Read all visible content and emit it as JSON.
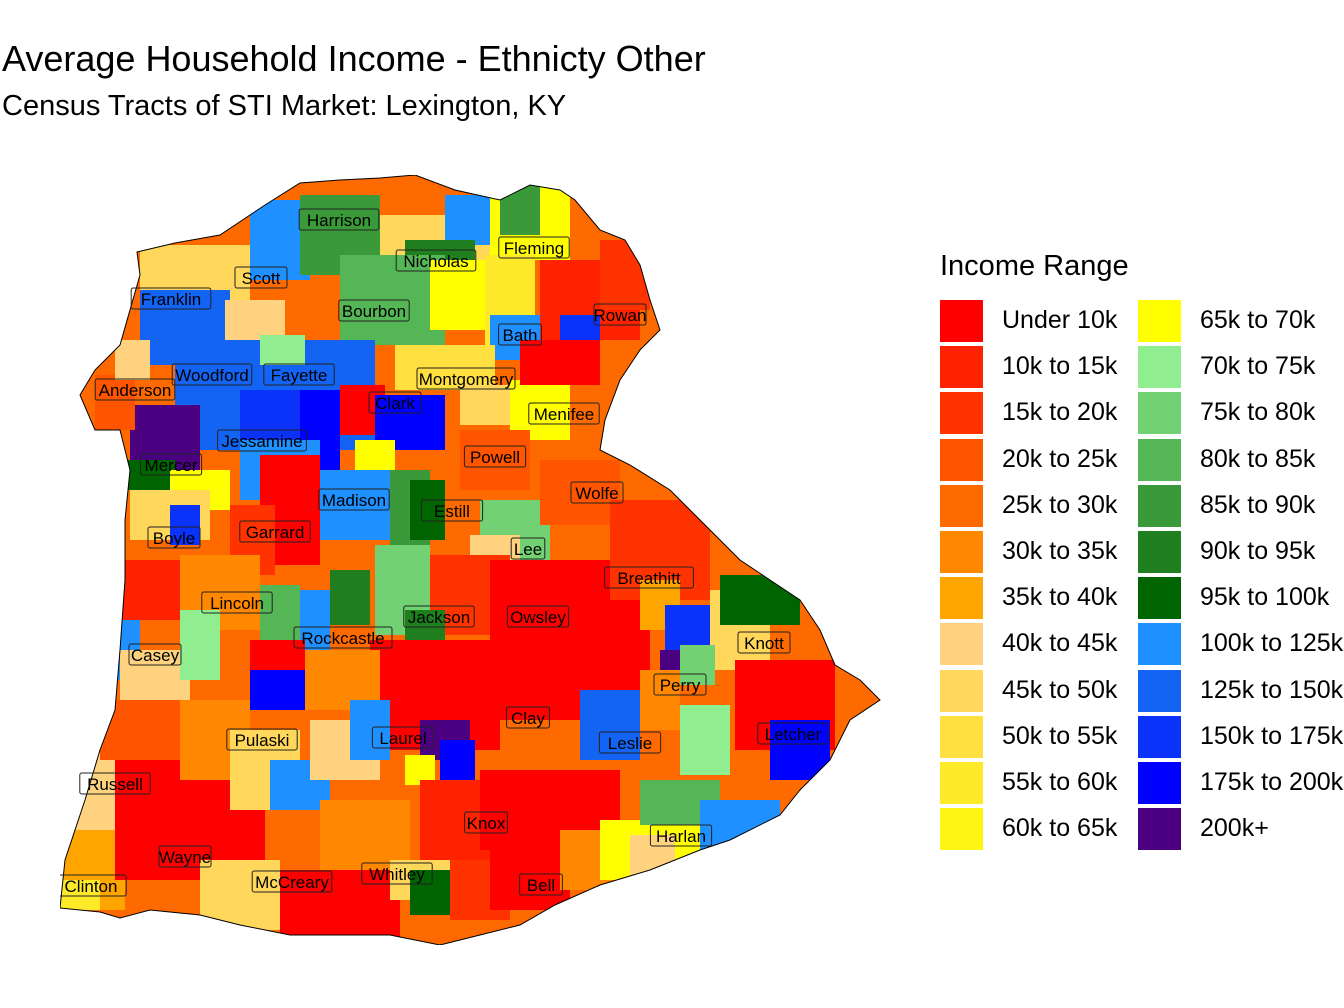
{
  "title": "Average Household Income - Ethnicty Other",
  "subtitle": "Census Tracts of STI Market: Lexington, KY",
  "legend": {
    "title": "Income Range",
    "items": [
      {
        "label": "Under 10k",
        "color": "#FF0000"
      },
      {
        "label": "10k to 15k",
        "color": "#FF2200"
      },
      {
        "label": "15k to 20k",
        "color": "#FF3300"
      },
      {
        "label": "20k to 25k",
        "color": "#FF5500"
      },
      {
        "label": "25k to 30k",
        "color": "#FF6A00"
      },
      {
        "label": "30k to 35k",
        "color": "#FF8800"
      },
      {
        "label": "35k to 40k",
        "color": "#FFA500"
      },
      {
        "label": "40k to 45k",
        "color": "#FFD27F"
      },
      {
        "label": "45k to 50k",
        "color": "#FFD75A"
      },
      {
        "label": "50k to 55k",
        "color": "#FFE040"
      },
      {
        "label": "55k to 60k",
        "color": "#FFEA2A"
      },
      {
        "label": "60k to 65k",
        "color": "#FFF514"
      },
      {
        "label": "65k to 70k",
        "color": "#FFFF00"
      },
      {
        "label": "70k to 75k",
        "color": "#90EE90"
      },
      {
        "label": "75k to 80k",
        "color": "#72D172"
      },
      {
        "label": "80k to 85k",
        "color": "#55B655"
      },
      {
        "label": "85k to 90k",
        "color": "#3A9A3A"
      },
      {
        "label": "90k to 95k",
        "color": "#1F7F1F"
      },
      {
        "label": "95k to 100k",
        "color": "#006400"
      },
      {
        "label": "100k to 125k",
        "color": "#1E90FF"
      },
      {
        "label": "125k to 150k",
        "color": "#1464F4"
      },
      {
        "label": "150k to 175k",
        "color": "#0A32F8"
      },
      {
        "label": "175k to 200k",
        "color": "#0000FF"
      },
      {
        "label": "200k+",
        "color": "#4B0082"
      }
    ]
  },
  "counties": [
    "Harrison",
    "Fleming",
    "Nicholas",
    "Scott",
    "Franklin",
    "Bourbon",
    "Rowan",
    "Bath",
    "Woodford",
    "Fayette",
    "Montgomery",
    "Anderson",
    "Clark",
    "Menifee",
    "Jessamine",
    "Powell",
    "Mercer",
    "Wolfe",
    "Madison",
    "Estill",
    "Boyle",
    "Garrard",
    "Lee",
    "Breathitt",
    "Lincoln",
    "Jackson",
    "Owsley",
    "Rockcastle",
    "Knott",
    "Casey",
    "Perry",
    "Clay",
    "Pulaski",
    "Laurel",
    "Leslie",
    "Letcher",
    "Russell",
    "Knox",
    "Harlan",
    "Wayne",
    "Whitley",
    "McCreary",
    "Bell",
    "Clinton"
  ]
}
